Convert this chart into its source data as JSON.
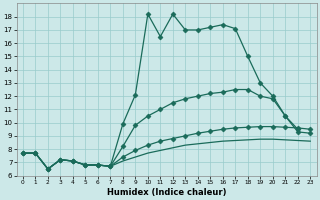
{
  "xlabel": "Humidex (Indice chaleur)",
  "background_color": "#cce8e8",
  "grid_color": "#99cccc",
  "line_color": "#1a6b5a",
  "xlim": [
    -0.5,
    23.5
  ],
  "ylim": [
    6,
    19
  ],
  "xticks": [
    0,
    1,
    2,
    3,
    4,
    5,
    6,
    7,
    8,
    9,
    10,
    11,
    12,
    13,
    14,
    15,
    16,
    17,
    18,
    19,
    20,
    21,
    22,
    23
  ],
  "yticks": [
    6,
    7,
    8,
    9,
    10,
    11,
    12,
    13,
    14,
    15,
    16,
    17,
    18
  ],
  "series": [
    {
      "x": [
        0,
        1,
        2,
        3,
        4,
        5,
        6,
        7,
        8,
        9,
        10,
        11,
        12,
        13,
        14,
        15,
        16,
        17,
        18,
        19,
        20,
        21,
        22,
        23
      ],
      "y": [
        7.7,
        7.7,
        6.5,
        7.2,
        7.1,
        6.8,
        6.8,
        6.7,
        9.9,
        12.1,
        18.2,
        16.5,
        18.2,
        17.0,
        17.0,
        17.2,
        17.4,
        17.1,
        15.0,
        13.0,
        12.0,
        10.5,
        9.3,
        9.2
      ],
      "style": "solid",
      "marker": "D",
      "markersize": 2.5,
      "linewidth": 0.9
    },
    {
      "x": [
        0,
        1,
        2,
        3,
        4,
        5,
        6,
        7,
        8,
        9,
        10,
        11,
        12,
        13,
        14,
        15,
        16,
        17,
        18,
        19,
        20,
        21,
        22,
        23
      ],
      "y": [
        7.7,
        7.7,
        6.5,
        7.2,
        7.1,
        6.8,
        6.8,
        6.7,
        8.2,
        9.8,
        10.5,
        11.0,
        11.5,
        11.8,
        12.0,
        12.2,
        12.3,
        12.5,
        12.5,
        12.0,
        11.8,
        10.5,
        9.5,
        null
      ],
      "style": "solid",
      "marker": "D",
      "markersize": 2.5,
      "linewidth": 0.9
    },
    {
      "x": [
        0,
        1,
        2,
        3,
        4,
        5,
        6,
        7,
        8,
        9,
        10,
        11,
        12,
        13,
        14,
        15,
        16,
        17,
        18,
        19,
        20,
        21,
        22,
        23
      ],
      "y": [
        7.7,
        7.7,
        6.5,
        7.2,
        7.1,
        6.8,
        6.8,
        6.7,
        7.4,
        7.9,
        8.3,
        8.6,
        8.8,
        9.0,
        9.2,
        9.35,
        9.5,
        9.6,
        9.65,
        9.7,
        9.7,
        9.65,
        9.6,
        9.5
      ],
      "style": "solid",
      "marker": "D",
      "markersize": 2.5,
      "linewidth": 0.9
    },
    {
      "x": [
        0,
        1,
        2,
        3,
        4,
        5,
        6,
        7,
        8,
        9,
        10,
        11,
        12,
        13,
        14,
        15,
        16,
        17,
        18,
        19,
        20,
        21,
        22,
        23
      ],
      "y": [
        7.7,
        7.7,
        6.5,
        7.2,
        7.1,
        6.8,
        6.8,
        6.7,
        7.1,
        7.4,
        7.7,
        7.9,
        8.1,
        8.3,
        8.4,
        8.5,
        8.6,
        8.65,
        8.7,
        8.75,
        8.75,
        8.7,
        8.65,
        8.6
      ],
      "style": "solid",
      "marker": null,
      "markersize": 0,
      "linewidth": 0.9
    }
  ]
}
